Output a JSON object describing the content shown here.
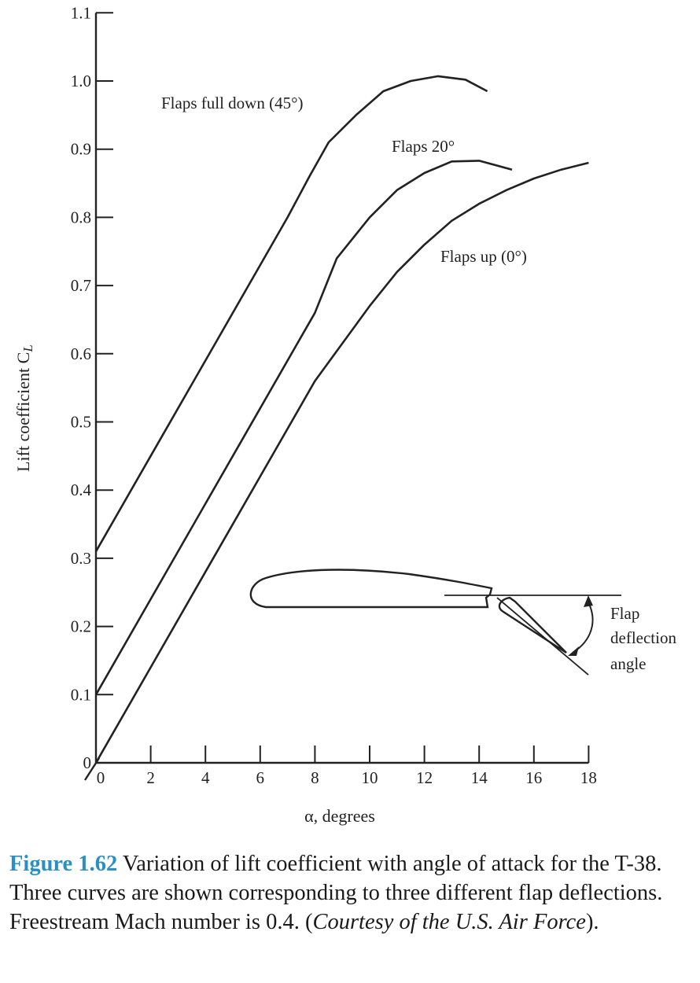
{
  "chart_data": {
    "type": "line",
    "xlabel": "α, degrees",
    "ylabel": "Lift coefficient C",
    "ylabel_subscript": "L",
    "xlim": [
      0,
      18
    ],
    "ylim": [
      0,
      1.1
    ],
    "x_ticks": [
      "0",
      "2",
      "4",
      "6",
      "8",
      "10",
      "12",
      "14",
      "16",
      "18"
    ],
    "y_ticks": [
      "0",
      "0.1",
      "0.2",
      "0.3",
      "0.4",
      "0.5",
      "0.6",
      "0.7",
      "0.8",
      "0.9",
      "1.0",
      "1.1"
    ],
    "grid": false,
    "series": [
      {
        "name": "Flaps full down (45°)",
        "x": [
          0,
          2,
          4,
          6,
          7,
          7.8,
          8.5,
          9.5,
          10.5,
          11.5,
          12.5,
          13.5,
          14.3
        ],
        "y": [
          0.31,
          0.45,
          0.59,
          0.73,
          0.8,
          0.86,
          0.91,
          0.95,
          0.985,
          1.0,
          1.007,
          1.002,
          0.985
        ]
      },
      {
        "name": "Flaps 20°",
        "x": [
          0,
          2,
          4,
          6,
          8,
          8.8,
          10,
          11,
          12,
          13,
          14,
          15.2
        ],
        "y": [
          0.1,
          0.24,
          0.38,
          0.52,
          0.66,
          0.74,
          0.8,
          0.84,
          0.865,
          0.882,
          0.883,
          0.87
        ]
      },
      {
        "name": "Flaps up (0°)",
        "x": [
          0,
          2,
          4,
          6,
          8,
          10,
          11,
          12,
          13,
          14,
          15,
          16,
          17,
          18
        ],
        "y": [
          0.0,
          0.14,
          0.28,
          0.42,
          0.56,
          0.67,
          0.72,
          0.76,
          0.795,
          0.82,
          0.84,
          0.857,
          0.87,
          0.88
        ]
      }
    ],
    "inset_label": [
      "Flap",
      "deflection",
      "angle"
    ]
  },
  "caption": {
    "figure_number": "Figure 1.62",
    "text_1": " Variation of lift coefficient with angle of attack for the T-38. Three curves are shown corresponding to three different flap deflections. Freestream Mach number is 0.4. (",
    "text_italic": "Courtesy of the U.S. Air Force",
    "text_2": ")."
  }
}
